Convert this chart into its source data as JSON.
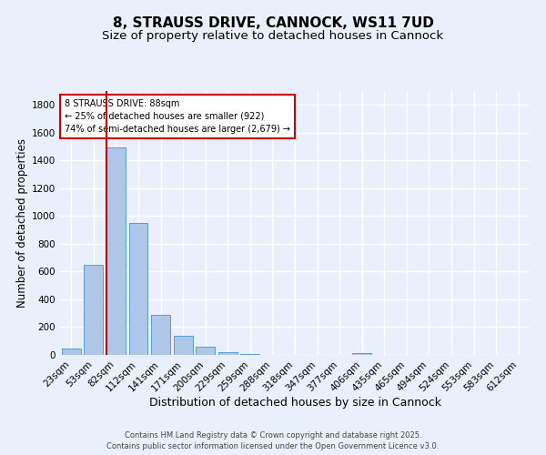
{
  "title": "8, STRAUSS DRIVE, CANNOCK, WS11 7UD",
  "subtitle": "Size of property relative to detached houses in Cannock",
  "xlabel": "Distribution of detached houses by size in Cannock",
  "ylabel": "Number of detached properties",
  "categories": [
    "23sqm",
    "53sqm",
    "82sqm",
    "112sqm",
    "141sqm",
    "171sqm",
    "200sqm",
    "229sqm",
    "259sqm",
    "288sqm",
    "318sqm",
    "347sqm",
    "377sqm",
    "406sqm",
    "435sqm",
    "465sqm",
    "494sqm",
    "524sqm",
    "553sqm",
    "583sqm",
    "612sqm"
  ],
  "values": [
    47,
    651,
    1497,
    951,
    290,
    135,
    62,
    22,
    8,
    3,
    2,
    1,
    0,
    10,
    0,
    0,
    0,
    0,
    0,
    0,
    0
  ],
  "bar_color": "#aec6e8",
  "bar_edge_color": "#5b9bd5",
  "vline_index": 2,
  "vline_color": "#cc0000",
  "annotation_text": "8 STRAUSS DRIVE: 88sqm\n← 25% of detached houses are smaller (922)\n74% of semi-detached houses are larger (2,679) →",
  "annotation_box_color": "#ffffff",
  "annotation_box_edge_color": "#cc0000",
  "ylim": [
    0,
    1900
  ],
  "yticks": [
    0,
    200,
    400,
    600,
    800,
    1000,
    1200,
    1400,
    1600,
    1800
  ],
  "background_color": "#eaf0fb",
  "plot_background_color": "#eaf0fb",
  "grid_color": "#ffffff",
  "footer": "Contains HM Land Registry data © Crown copyright and database right 2025.\nContains public sector information licensed under the Open Government Licence v3.0.",
  "title_fontsize": 11,
  "subtitle_fontsize": 9.5,
  "xlabel_fontsize": 9,
  "ylabel_fontsize": 8.5,
  "tick_fontsize": 7.5,
  "annotation_fontsize": 7,
  "footer_fontsize": 6
}
